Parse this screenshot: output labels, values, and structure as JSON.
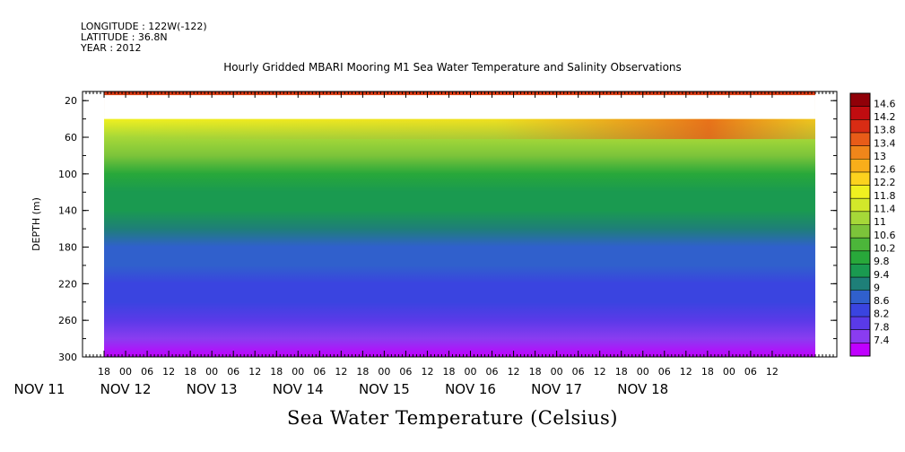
{
  "header": {
    "longitude": "LONGITUDE : 122W(-122)",
    "latitude": "LATITUDE : 36.8N",
    "year": "YEAR : 2012"
  },
  "chart_data": {
    "type": "heatmap",
    "title": "Hourly Gridded MBARI Mooring M1 Sea Water Temperature and Salinity Observations",
    "bottom_title": "Sea Water Temperature (Celsius)",
    "ylabel": "DEPTH (m)",
    "ylim": [
      300,
      10
    ],
    "y_ticks": [
      20,
      60,
      100,
      140,
      180,
      220,
      260,
      300
    ],
    "x_time_range_hours_from_nov11_00": [
      18,
      216
    ],
    "x_hour_ticks": [
      "18",
      "00",
      "06",
      "12",
      "18",
      "00",
      "06",
      "12",
      "18",
      "00",
      "06",
      "12",
      "18",
      "00",
      "06",
      "12",
      "18",
      "00",
      "06",
      "12",
      "18",
      "00",
      "06",
      "12",
      "18",
      "00",
      "06",
      "12",
      "18",
      "00",
      "06",
      "12"
    ],
    "x_day_labels": [
      "NOV 11",
      "NOV 12",
      "NOV 13",
      "NOV 14",
      "NOV 15",
      "NOV 16",
      "NOV 17",
      "NOV 18"
    ],
    "colorbar_levels": [
      "14.6",
      "14.2",
      "13.8",
      "13.4",
      "13",
      "12.6",
      "12.2",
      "11.8",
      "11.4",
      "11",
      "10.6",
      "10.2",
      "9.8",
      "9.4",
      "9",
      "8.6",
      "8.2",
      "7.8",
      "7.4"
    ],
    "value_range": [
      7.4,
      15.0
    ],
    "no_data_depth_range_m": [
      20,
      40
    ],
    "depth_profile": [
      {
        "depth": 10,
        "temp": 14.2
      },
      {
        "depth": 40,
        "temp": 12.0
      },
      {
        "depth": 60,
        "temp": 11.4
      },
      {
        "depth": 80,
        "temp": 10.9
      },
      {
        "depth": 100,
        "temp": 10.4
      },
      {
        "depth": 120,
        "temp": 10.0
      },
      {
        "depth": 140,
        "temp": 9.7
      },
      {
        "depth": 160,
        "temp": 9.5
      },
      {
        "depth": 180,
        "temp": 9.2
      },
      {
        "depth": 200,
        "temp": 9.0
      },
      {
        "depth": 220,
        "temp": 8.8
      },
      {
        "depth": 240,
        "temp": 8.6
      },
      {
        "depth": 260,
        "temp": 8.3
      },
      {
        "depth": 280,
        "temp": 8.0
      },
      {
        "depth": 300,
        "temp": 7.6
      }
    ],
    "colors": [
      "#c000ff",
      "#8a3cf0",
      "#5a3ae8",
      "#3a44e0",
      "#3060cc",
      "#1e7f78",
      "#1a9a50",
      "#28a83a",
      "#4cb63a",
      "#7cc43a",
      "#a6d838",
      "#d2e82a",
      "#f0f020",
      "#fcd21e",
      "#f8ae1a",
      "#f0861a",
      "#e85c18",
      "#d82c14",
      "#c00c10",
      "#900008"
    ],
    "grid": false
  }
}
